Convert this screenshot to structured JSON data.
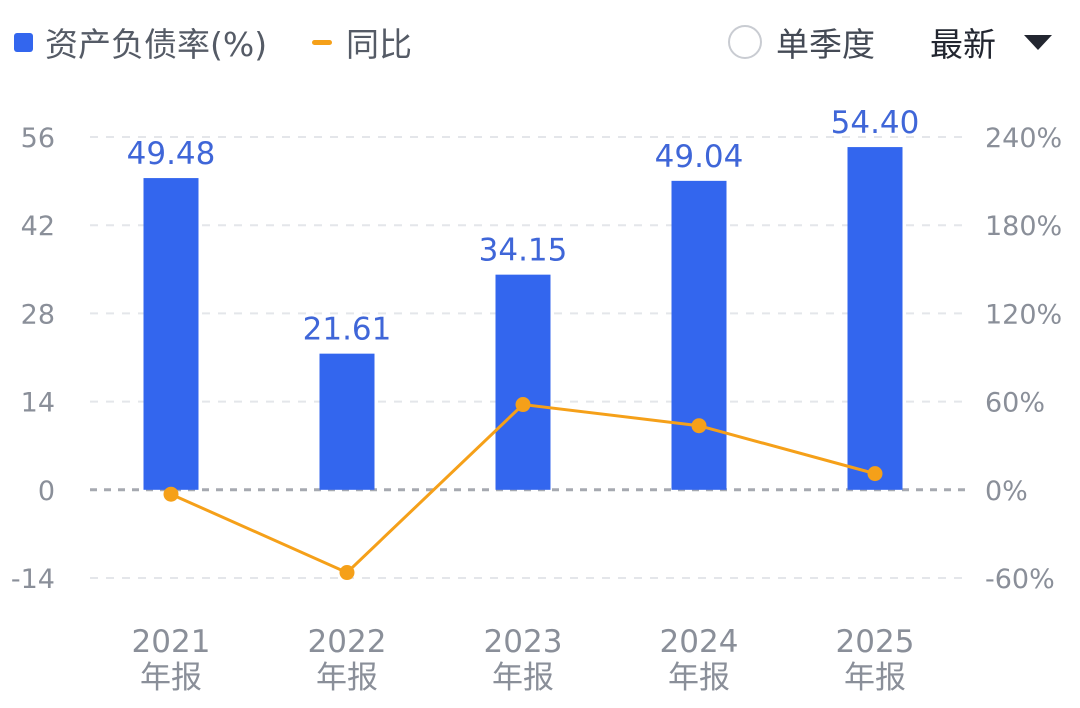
{
  "header": {
    "legend": [
      {
        "label": "资产负债率(%)",
        "swatch": "bar",
        "color": "#3366ee"
      },
      {
        "label": "同比",
        "swatch": "line",
        "color": "#f5a019"
      }
    ],
    "single_quarter_label": "单季度",
    "single_quarter_checked": false,
    "period_select": "最新"
  },
  "chart_data": {
    "type": "bar",
    "categories": [
      "2021\n年报",
      "2022\n年报",
      "2023\n年报",
      "2024\n年报",
      "2025\n年报"
    ],
    "series": [
      {
        "name": "资产负债率(%)",
        "type": "bar",
        "axis": "left",
        "color": "#3366ee",
        "values": [
          49.48,
          21.61,
          34.15,
          49.04,
          54.4
        ],
        "labels": [
          "49.48",
          "21.61",
          "34.15",
          "49.04",
          "54.40"
        ]
      },
      {
        "name": "同比",
        "type": "line",
        "axis": "right",
        "color": "#f5a019",
        "values": [
          -3,
          -56.3,
          58,
          43.6,
          11
        ]
      }
    ],
    "y_left": {
      "ticks": [
        56,
        42,
        28,
        14,
        0,
        -14
      ],
      "labels": [
        "56",
        "42",
        "28",
        "14",
        "0",
        "-14"
      ],
      "ylim": [
        -14,
        56
      ]
    },
    "y_right": {
      "ticks": [
        240,
        180,
        120,
        60,
        0,
        -60
      ],
      "labels": [
        "240%",
        "180%",
        "120%",
        "60%",
        "0%",
        "-60%"
      ],
      "ylim": [
        -60,
        240
      ]
    },
    "grid": true,
    "legend_position": "top-left"
  }
}
